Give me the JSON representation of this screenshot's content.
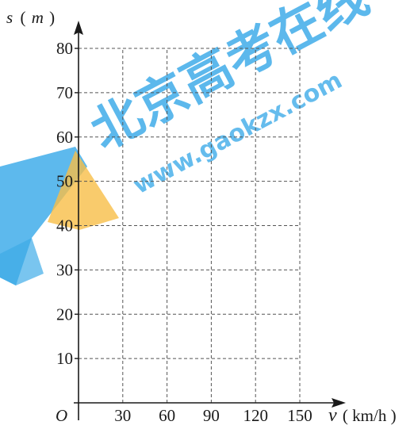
{
  "watermark": {
    "text_cn": "北京高考在线",
    "text_url": "www.gaokzx.com",
    "color_main": "#2aa3e6",
    "color_accent": "#f7b733"
  },
  "chart_data": {
    "type": "scatter",
    "title": "",
    "xlabel_var": "v",
    "xlabel_unit": "( km/h )",
    "ylabel": "s ( m )",
    "ylabel_var": "s",
    "ylabel_unit_open": "(",
    "ylabel_unit": "m",
    "ylabel_unit_close": ")",
    "origin_label": "O",
    "xlim": [
      0,
      150
    ],
    "ylim": [
      0,
      80
    ],
    "x_ticks": [
      30,
      60,
      90,
      120,
      150
    ],
    "y_ticks": [
      10,
      20,
      30,
      40,
      50,
      60,
      70,
      80
    ],
    "grid": true,
    "grid_style": "dashed",
    "series": [],
    "colors": {
      "axis": "#1a1a1a",
      "grid": "#555555"
    }
  }
}
